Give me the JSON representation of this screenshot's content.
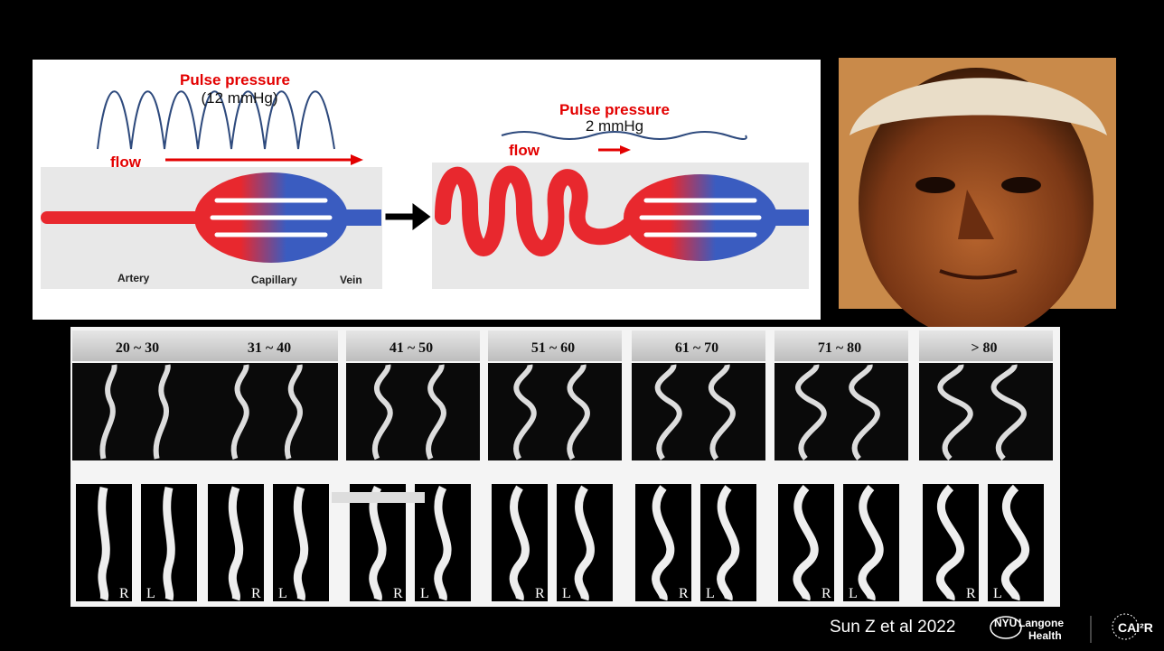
{
  "diagram": {
    "left": {
      "pulse_title": "Pulse pressure",
      "pulse_value": "(12 mmHg)",
      "flow": "flow",
      "labels": [
        "Artery",
        "Capillary",
        "Vein"
      ]
    },
    "right": {
      "pulse_title": "Pulse pressure",
      "pulse_value": "2 mmHg",
      "flow": "flow"
    }
  },
  "age_panel": {
    "groups": [
      {
        "label": "20 ~ 30",
        "right": "R",
        "left": "L"
      },
      {
        "label": "31 ~ 40",
        "right": "R",
        "left": "L"
      },
      {
        "label": "41 ~ 50",
        "right": "R",
        "left": "L"
      },
      {
        "label": "51 ~ 60",
        "right": "R",
        "left": "L"
      },
      {
        "label": "61 ~ 70",
        "right": "R",
        "left": "L"
      },
      {
        "label": "71 ~ 80",
        "right": "R",
        "left": "L"
      },
      {
        "label": "> 80",
        "right": "R",
        "left": "L"
      }
    ]
  },
  "citation": "Sun Z et al 2022",
  "logos": {
    "nyu": "NYU",
    "langone": "Langone",
    "health": "Health",
    "cai2r": "CAI²R"
  }
}
